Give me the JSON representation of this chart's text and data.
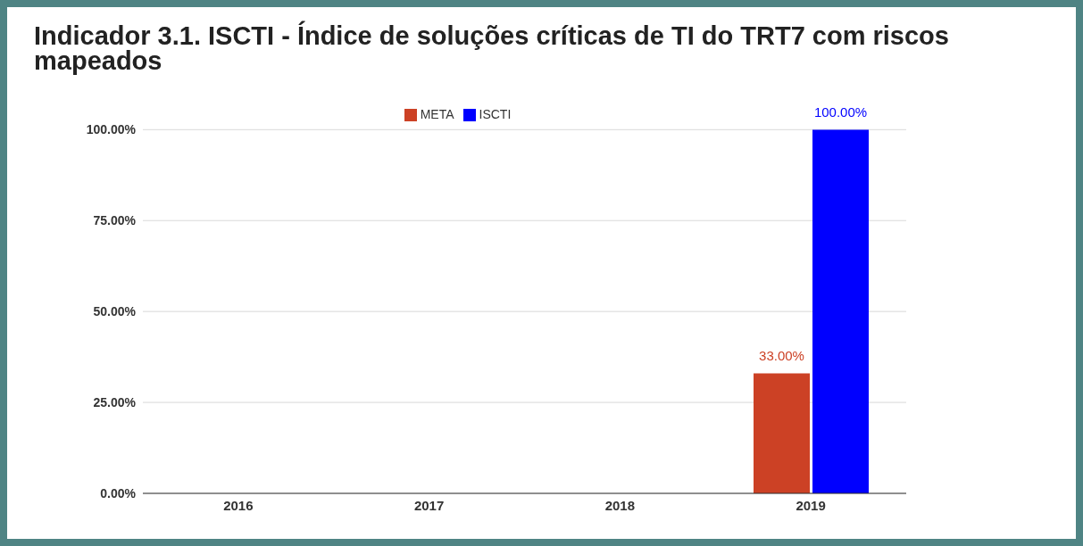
{
  "chart_data": {
    "type": "bar",
    "title": "Indicador 3.1. ISCTI - Índice de soluções críticas de TI do TRT7 com riscos mapeados",
    "categories": [
      "2016",
      "2017",
      "2018",
      "2019"
    ],
    "series": [
      {
        "name": "META",
        "color": "#cc4125",
        "values": [
          null,
          null,
          null,
          33
        ],
        "value_labels": [
          null,
          null,
          null,
          "33.00%"
        ]
      },
      {
        "name": "ISCTI",
        "color": "#0000ff",
        "values": [
          null,
          null,
          null,
          100
        ],
        "value_labels": [
          null,
          null,
          null,
          "100.00%"
        ]
      }
    ],
    "ylim": [
      0,
      100
    ],
    "yticks": [
      {
        "value": 0,
        "label": "0.00%"
      },
      {
        "value": 25,
        "label": "25.00%"
      },
      {
        "value": 50,
        "label": "50.00%"
      },
      {
        "value": 75,
        "label": "75.00%"
      },
      {
        "value": 100,
        "label": "100.00%"
      }
    ],
    "grid": "y",
    "legend": "top"
  }
}
